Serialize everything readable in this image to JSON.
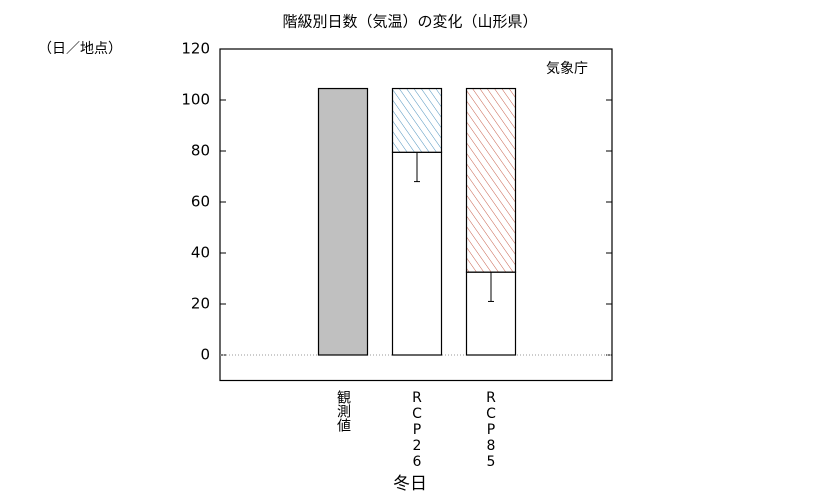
{
  "chart_data": {
    "type": "stacked-bar",
    "title": "階級別日数（気温）の変化（山形県）",
    "y_unit": "（日／地点）",
    "annotation": "気象庁",
    "xlabel": "冬日",
    "categories": [
      "観測値",
      "RCP26",
      "RCP85"
    ],
    "series": [
      {
        "colors": [
          "#c0c0c0",
          "#ffffff",
          "#ffffff"
        ],
        "values": [
          104.5,
          79.5,
          32.5
        ],
        "errors": [
          null,
          11.5,
          11.5
        ]
      },
      {
        "colors": [
          null,
          "#4f93be",
          "#c8604c"
        ],
        "hatched": true,
        "values": [
          null,
          25,
          72
        ]
      }
    ],
    "ylim": [
      -10,
      120
    ],
    "yticks": [
      0,
      20,
      40,
      60,
      80,
      100,
      120
    ]
  }
}
